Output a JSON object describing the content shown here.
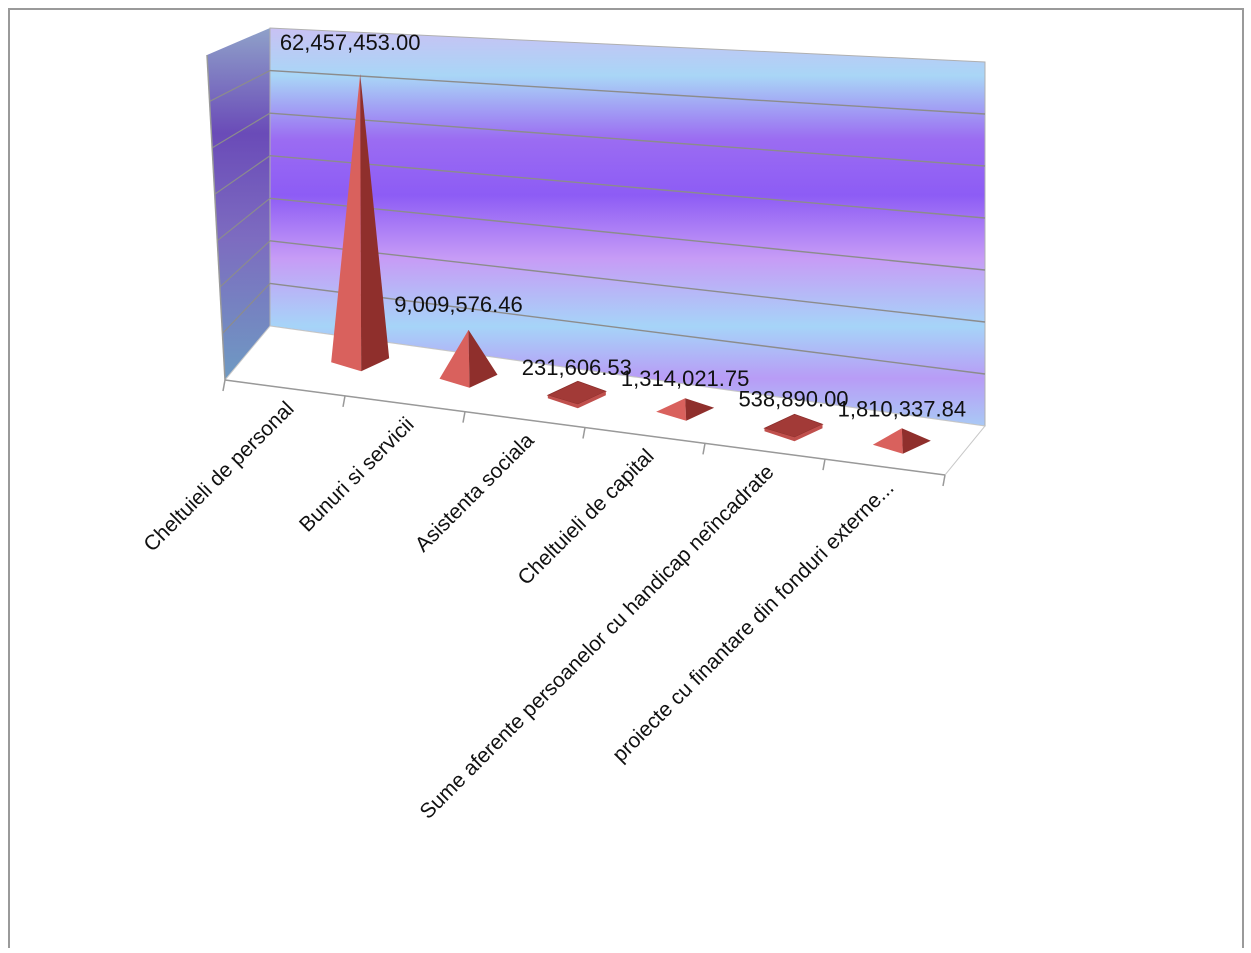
{
  "chart_data": {
    "type": "bar",
    "style": "3d-pyramid",
    "categories": [
      "Cheltuieli de personal",
      "Bunuri si servicii",
      "Asistenta sociala",
      "Cheltuieli de capital",
      "Sume aferente persoanelor cu handicap neîncadrate",
      "proiecte cu finantare din fonduri externe..."
    ],
    "values": [
      62457453.0,
      9009576.46,
      231606.53,
      1314021.75,
      538890.0,
      1810337.84
    ],
    "value_labels": [
      "62,457,453.00",
      "9,009,576.46",
      "231,606.53",
      "1,314,021.75",
      "538,890.00",
      "1,810,337.84"
    ],
    "title": "",
    "xlabel": "",
    "ylabel": "",
    "ylim": [
      0,
      70000000
    ],
    "grid": true,
    "legend": "none",
    "colors": {
      "bar": "#c0504d",
      "wall_top": "#b9a8f2",
      "wall_mid": "#8f5cf4",
      "wall_light": "#a8d8f8",
      "floor": "#ffffff"
    }
  }
}
